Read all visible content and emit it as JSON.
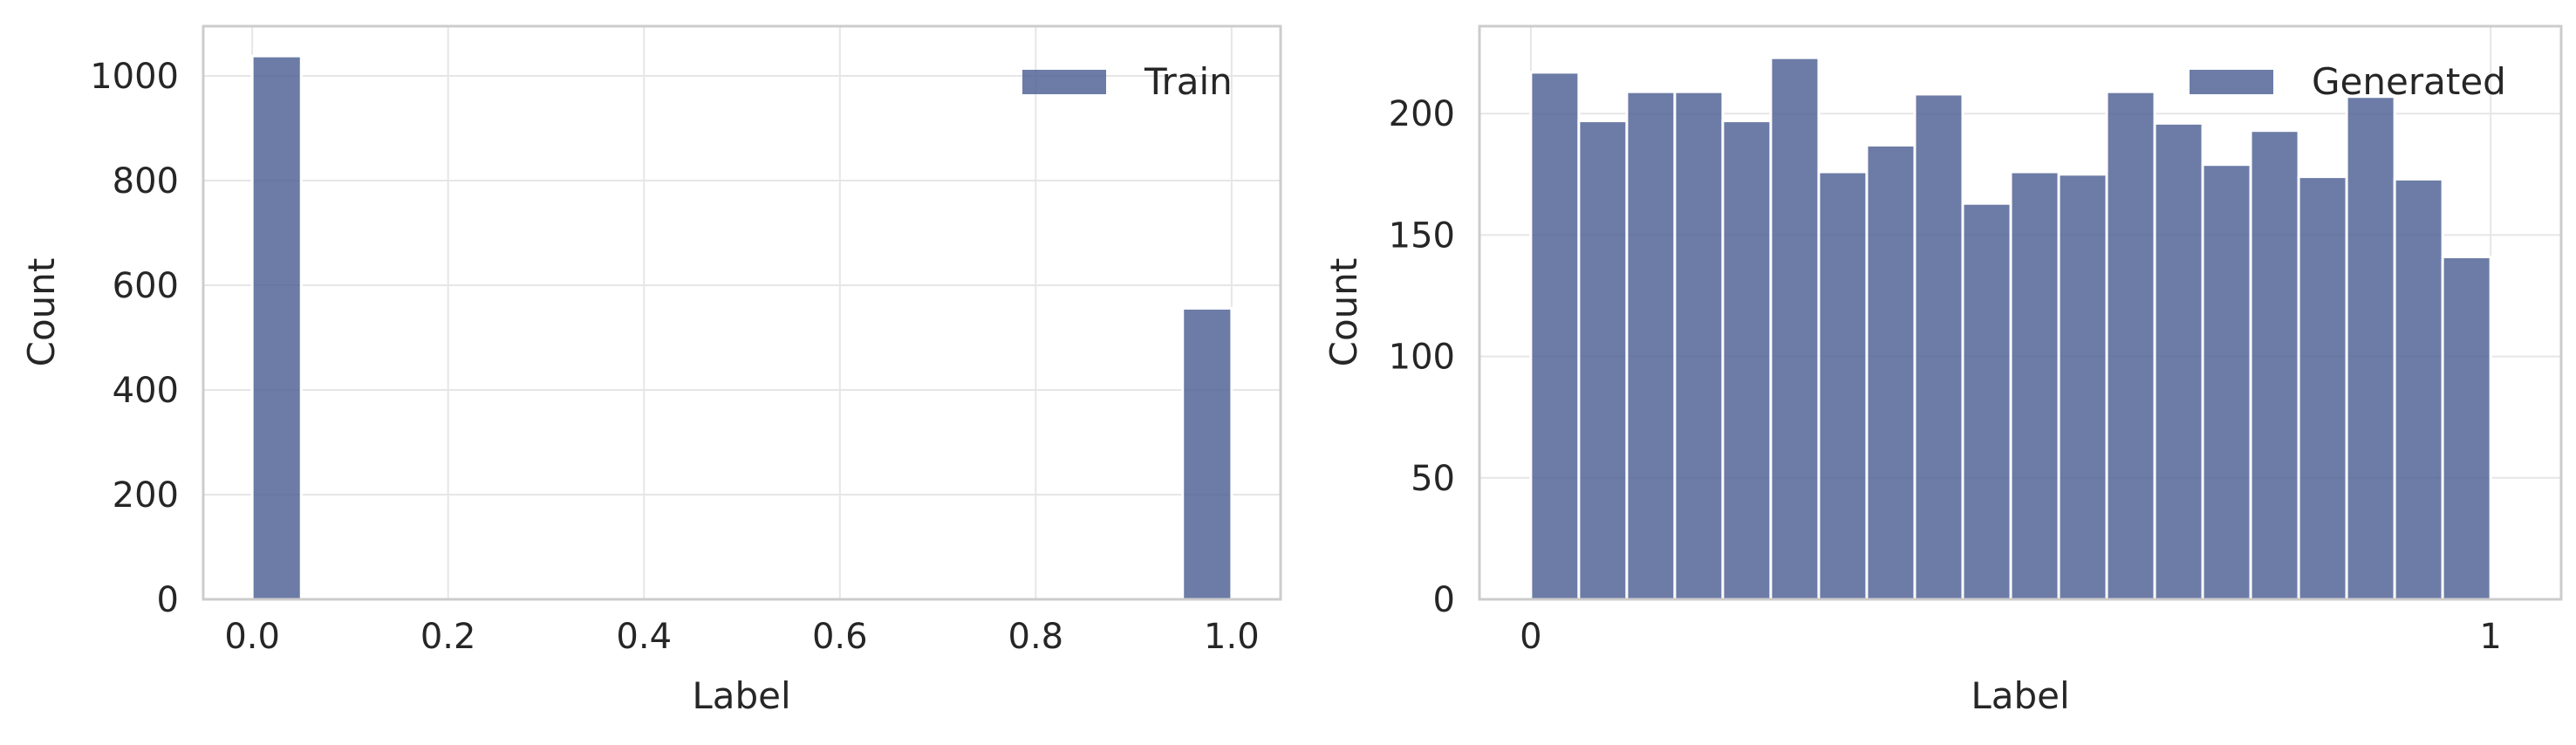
{
  "chart_data": [
    {
      "type": "bar",
      "title": "",
      "xlabel": "Label",
      "ylabel": "Count",
      "xlim": [
        -0.05,
        1.05
      ],
      "ylim": [
        0,
        1095
      ],
      "xticks": [
        0.0,
        0.2,
        0.4,
        0.6,
        0.8,
        1.0
      ],
      "xtick_labels": [
        "0.0",
        "0.2",
        "0.4",
        "0.6",
        "0.8",
        "1.0"
      ],
      "yticks": [
        0,
        200,
        400,
        600,
        800,
        1000
      ],
      "ytick_labels": [
        "0",
        "200",
        "400",
        "600",
        "800",
        "1000"
      ],
      "grid": true,
      "legend_position": "top-right",
      "bin_width": 0.05,
      "series": [
        {
          "name": "Train",
          "color": "#4c5f92",
          "bins": [
            {
              "x0": 0.0,
              "x1": 0.05,
              "value": 1038
            },
            {
              "x0": 0.95,
              "x1": 1.0,
              "value": 556
            }
          ]
        }
      ]
    },
    {
      "type": "bar",
      "title": "",
      "xlabel": "Label",
      "ylabel": "Count",
      "xlim": [
        -0.0535,
        1.0735
      ],
      "ylim": [
        0,
        236
      ],
      "xticks": [
        0,
        1
      ],
      "xtick_labels": [
        "0",
        "1"
      ],
      "yticks": [
        0,
        50,
        100,
        150,
        200
      ],
      "ytick_labels": [
        "0",
        "50",
        "100",
        "150",
        "200"
      ],
      "grid": true,
      "legend_position": "top-right",
      "bin_width": 0.05,
      "series": [
        {
          "name": "Generated",
          "color": "#4c5f92",
          "values": [
            217,
            197,
            209,
            209,
            197,
            223,
            176,
            187,
            208,
            163,
            176,
            175,
            209,
            196,
            179,
            193,
            174,
            207,
            173,
            141
          ]
        }
      ]
    }
  ]
}
